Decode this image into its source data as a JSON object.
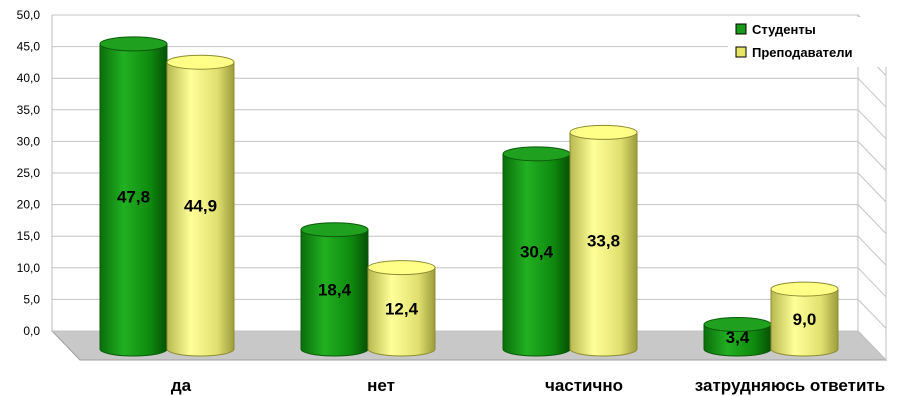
{
  "chart_data": {
    "type": "bar",
    "categories": [
      "да",
      "нет",
      "частично",
      "затрудняюсь ответить"
    ],
    "series": [
      {
        "name": "Студенты",
        "values": [
          47.8,
          18.4,
          30.4,
          3.4
        ],
        "labels": [
          "47,8",
          "18,4",
          "30,4",
          "3,4"
        ],
        "color": "#1a9a1a"
      },
      {
        "name": "Преподаватели",
        "values": [
          44.9,
          12.4,
          33.8,
          9.0
        ],
        "labels": [
          "44,9",
          "12,4",
          "33,8",
          "9,0"
        ],
        "color": "#e6e666"
      }
    ],
    "yticks": [
      "0,0",
      "5,0",
      "10,0",
      "15,0",
      "20,0",
      "25,0",
      "30,0",
      "35,0",
      "40,0",
      "45,0",
      "50,0"
    ],
    "ylim": [
      0,
      50
    ],
    "grid": true,
    "legend": "top-right",
    "style": "3d-cylinder"
  }
}
